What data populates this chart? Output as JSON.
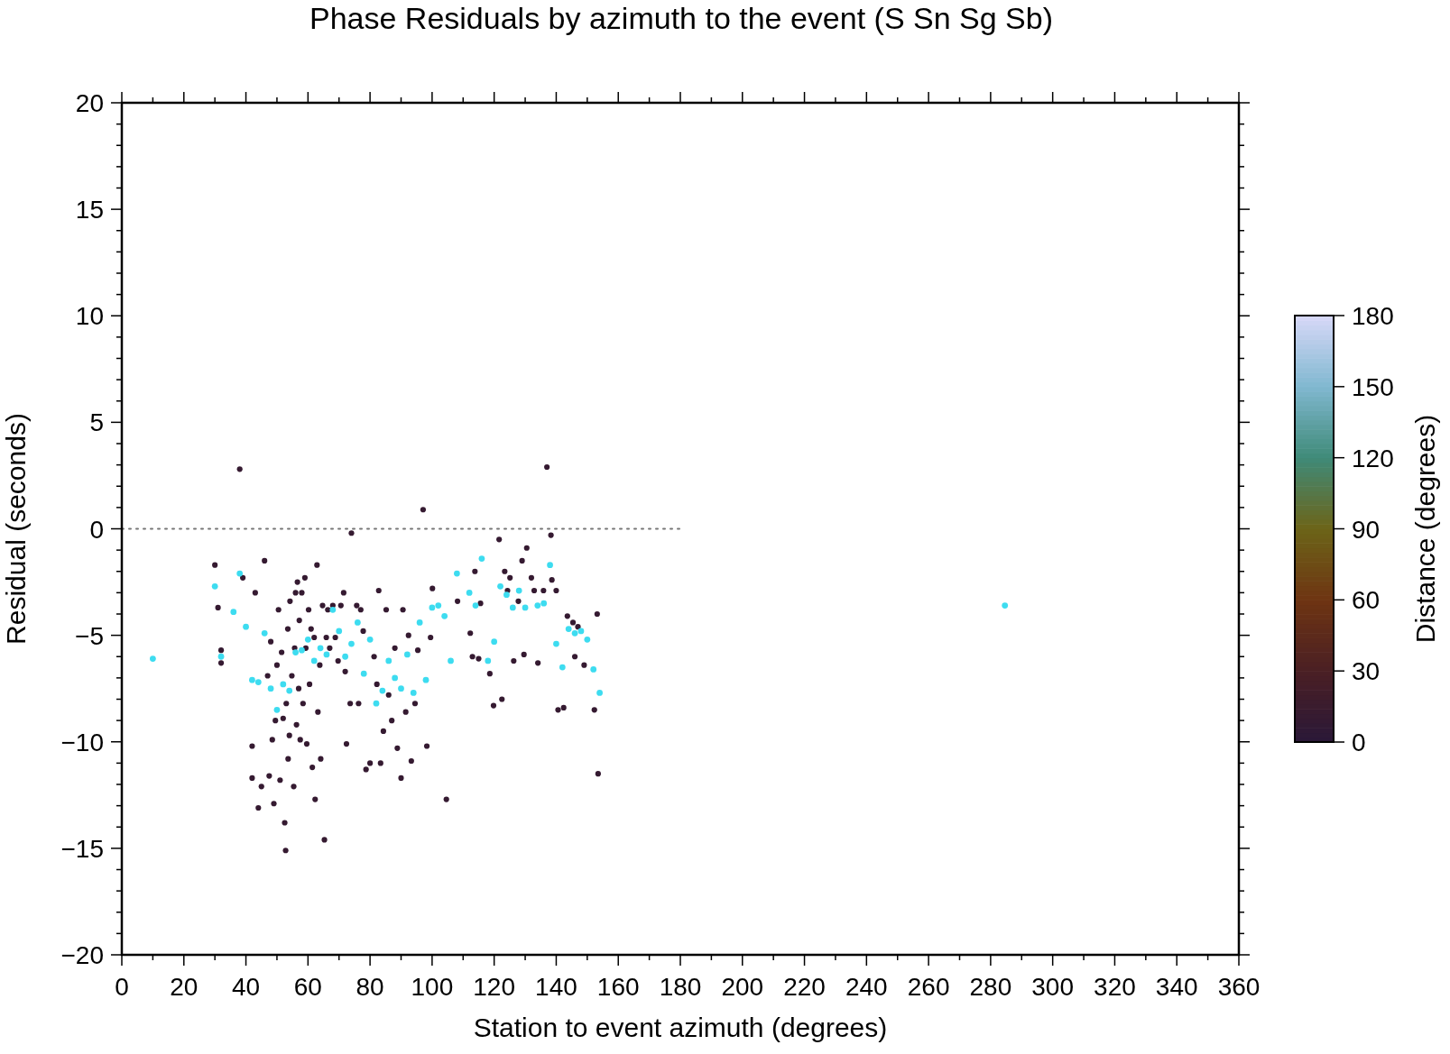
{
  "chart_data": {
    "type": "scatter",
    "title": "Phase Residuals by azimuth to the event (S Sn Sg Sb)",
    "xlabel": "Station to event azimuth (degrees)",
    "ylabel": "Residual (seconds)",
    "clabel": "Distance (degrees)",
    "xlim": [
      0,
      360
    ],
    "ylim": [
      -20,
      20
    ],
    "xticks": [
      0,
      {
        "value": 10,
        "label": null
      },
      20,
      {
        "value": 30,
        "label": null
      },
      40,
      {
        "value": 50,
        "label": null
      },
      60,
      {
        "value": 70,
        "label": null
      },
      80,
      {
        "value": 90,
        "label": null
      },
      100,
      {
        "value": 110,
        "label": null
      },
      120,
      {
        "value": 130,
        "label": null
      },
      140,
      {
        "value": 150,
        "label": null
      },
      160,
      {
        "value": 170,
        "label": null
      },
      180,
      {
        "value": 190,
        "label": null
      },
      200,
      {
        "value": 210,
        "label": null
      },
      220,
      {
        "value": 230,
        "label": null
      },
      240,
      {
        "value": 250,
        "label": null
      },
      260,
      {
        "value": 270,
        "label": null
      },
      280,
      {
        "value": 290,
        "label": null
      },
      300,
      {
        "value": 310,
        "label": null
      },
      320,
      {
        "value": 330,
        "label": null
      },
      340,
      {
        "value": 350,
        "label": null
      },
      360
    ],
    "yticks": [
      {
        "value": -20,
        "label": "−20"
      },
      {
        "value": -19,
        "label": null
      },
      {
        "value": -18,
        "label": null
      },
      {
        "value": -17,
        "label": null
      },
      {
        "value": -16,
        "label": null
      },
      {
        "value": -15,
        "label": "−15"
      },
      {
        "value": -14,
        "label": null
      },
      {
        "value": -13,
        "label": null
      },
      {
        "value": -12,
        "label": null
      },
      {
        "value": -11,
        "label": null
      },
      {
        "value": -10,
        "label": "−10"
      },
      {
        "value": -9,
        "label": null
      },
      {
        "value": -8,
        "label": null
      },
      {
        "value": -7,
        "label": null
      },
      {
        "value": -6,
        "label": null
      },
      {
        "value": -5,
        "label": "−5"
      },
      {
        "value": -4,
        "label": null
      },
      {
        "value": -3,
        "label": null
      },
      {
        "value": -2,
        "label": null
      },
      {
        "value": -1,
        "label": null
      },
      0,
      {
        "value": 1,
        "label": null
      },
      {
        "value": 2,
        "label": null
      },
      {
        "value": 3,
        "label": null
      },
      {
        "value": 4,
        "label": null
      },
      5,
      {
        "value": 6,
        "label": null
      },
      {
        "value": 7,
        "label": null
      },
      {
        "value": 8,
        "label": null
      },
      {
        "value": 9,
        "label": null
      },
      10,
      {
        "value": 11,
        "label": null
      },
      {
        "value": 12,
        "label": null
      },
      {
        "value": 13,
        "label": null
      },
      {
        "value": 14,
        "label": null
      },
      15,
      {
        "value": 16,
        "label": null
      },
      {
        "value": 17,
        "label": null
      },
      {
        "value": 18,
        "label": null
      },
      {
        "value": 19,
        "label": null
      },
      20
    ],
    "clim": [
      0,
      180
    ],
    "cticks": [
      0,
      30,
      60,
      90,
      120,
      150,
      180
    ],
    "grid": false,
    "series": [
      {
        "type": "line",
        "color": "#777777",
        "line_style": "dotted",
        "x": [
          0,
          180
        ],
        "values": [
          0,
          0
        ]
      },
      {
        "marker": "circle",
        "x": [
          30,
          31,
          32,
          32,
          38,
          39,
          43,
          42,
          42,
          44,
          45,
          46,
          47,
          47.5,
          48,
          48.5,
          49,
          49.5,
          50,
          50.5,
          51,
          51.5,
          52,
          52.5,
          52.8,
          53,
          53.5,
          53.6,
          54,
          54.2,
          54.8,
          55.4,
          55.7,
          56,
          56.3,
          56.6,
          57,
          57.2,
          57.5,
          58,
          58.4,
          59,
          59.3,
          59.6,
          60.2,
          60.5,
          61,
          61.4,
          62,
          62.3,
          62.9,
          63.2,
          63.8,
          64.1,
          64.7,
          65.3,
          65.9,
          66.4,
          67,
          68,
          68.8,
          69.7,
          70.6,
          71.5,
          72,
          72.4,
          73.6,
          74,
          75.7,
          76.3,
          77,
          77.8,
          78.7,
          80,
          81.3,
          82.2,
          82.8,
          83.4,
          84.3,
          85.2,
          86,
          87,
          88,
          88.8,
          90,
          90.6,
          91.5,
          92.4,
          93.3,
          94.5,
          95.4,
          97.1,
          98.3,
          99.5,
          100.1,
          104.6,
          108.2,
          112.3,
          113,
          113.8,
          115,
          115.6,
          118.6,
          119.8,
          121.6,
          122.5,
          123.4,
          124.3,
          125.1,
          126.3,
          127.8,
          129,
          129.6,
          130.5,
          132,
          132.9,
          134.1,
          135.9,
          137,
          138.3,
          138.6,
          140,
          140.6,
          142.4,
          143.6,
          145.4,
          146,
          147,
          149,
          152.3,
          153.2,
          153.5
        ],
        "values": [
          -1.7,
          -3.7,
          -5.7,
          -6.3,
          2.8,
          -2.3,
          -3.0,
          -10.2,
          -11.7,
          -13.1,
          -12.1,
          -1.5,
          -6.9,
          -11.6,
          -5.3,
          -9.9,
          -12.9,
          -9.0,
          -6.4,
          -3.8,
          -11.8,
          -5.8,
          -8.9,
          -13.8,
          -15.1,
          -8.2,
          -4.7,
          -10.8,
          -9.7,
          -3.4,
          -6.9,
          -12.1,
          -5.6,
          -3.0,
          -9.2,
          -2.5,
          -7.5,
          -4.3,
          -9.9,
          -3.0,
          -8.2,
          -2.3,
          -5.6,
          -10.1,
          -3.8,
          -7.3,
          -4.7,
          -11.2,
          -5.1,
          -12.7,
          -1.7,
          -8.6,
          -6.4,
          -10.8,
          -3.6,
          -14.6,
          -5.1,
          -3.8,
          -5.6,
          -3.6,
          -5.1,
          -6.2,
          -3.6,
          -3.0,
          -6.7,
          -10.1,
          -8.2,
          -0.2,
          -3.6,
          -8.2,
          -3.8,
          -4.8,
          -11.3,
          -11.0,
          -6.0,
          -7.3,
          -2.9,
          -11.0,
          -9.5,
          -3.8,
          -7.8,
          -9.0,
          -5.6,
          -10.3,
          -11.7,
          -3.8,
          -8.6,
          -5.0,
          -10.9,
          -8.2,
          -5.7,
          0.9,
          -10.2,
          -5.1,
          -2.8,
          -12.7,
          -3.4,
          -4.9,
          -6.0,
          -2.0,
          -6.1,
          -3.5,
          -6.8,
          -8.3,
          -0.5,
          -8.0,
          -2.0,
          -2.9,
          -2.3,
          -6.2,
          -3.4,
          -1.5,
          -5.9,
          -0.9,
          -2.3,
          -2.9,
          -6.3,
          -2.9,
          2.9,
          -0.3,
          -2.4,
          -2.9,
          -8.5,
          -8.4,
          -4.1,
          -4.4,
          -6.0,
          -4.6,
          -6.4,
          -8.5,
          -4.0,
          -11.5
        ],
        "cvalues": [
          10,
          10,
          10,
          10,
          10,
          10,
          10,
          10,
          10,
          10,
          10,
          10,
          10,
          10,
          10,
          10,
          10,
          10,
          10,
          10,
          10,
          10,
          10,
          10,
          10,
          10,
          10,
          10,
          10,
          10,
          10,
          10,
          10,
          10,
          10,
          10,
          10,
          10,
          10,
          10,
          10,
          10,
          10,
          10,
          10,
          10,
          10,
          10,
          10,
          10,
          10,
          10,
          10,
          10,
          10,
          10,
          10,
          10,
          10,
          10,
          10,
          10,
          10,
          10,
          10,
          10,
          10,
          10,
          10,
          10,
          10,
          10,
          10,
          10,
          10,
          10,
          10,
          10,
          10,
          10,
          10,
          10,
          10,
          10,
          10,
          10,
          10,
          10,
          10,
          10,
          10,
          10,
          10,
          10,
          10,
          10,
          10,
          10,
          10,
          10,
          10,
          10,
          10,
          10,
          10,
          10,
          10,
          10,
          10,
          10,
          10,
          10,
          10,
          10,
          10,
          10,
          10,
          10,
          10,
          10,
          10,
          10,
          10,
          10,
          10,
          10,
          10,
          10,
          10,
          10,
          10,
          10
        ]
      },
      {
        "marker": "circle",
        "color": "#3ddcf0",
        "x": [
          10,
          30,
          32,
          36,
          38,
          40,
          42,
          44,
          46,
          48,
          50,
          52,
          54,
          56,
          58,
          60,
          62,
          64,
          66,
          68,
          70,
          72,
          74,
          76,
          78,
          80,
          82,
          84,
          86,
          88,
          90,
          92,
          94,
          96,
          98,
          100,
          102,
          104,
          106,
          108,
          112,
          114,
          116,
          118,
          120,
          122,
          124,
          126,
          128,
          130,
          134,
          136,
          138,
          140,
          142,
          144,
          146,
          148,
          150,
          152,
          154,
          284.6
        ],
        "values": [
          -6.1,
          -2.7,
          -6.0,
          -3.9,
          -2.1,
          -4.6,
          -7.1,
          -7.2,
          -4.9,
          -7.5,
          -8.5,
          -7.3,
          -7.6,
          -5.8,
          -5.7,
          -5.2,
          -6.2,
          -5.6,
          -5.9,
          -3.8,
          -4.8,
          -6.0,
          -5.4,
          -4.4,
          -6.8,
          -5.2,
          -8.2,
          -7.6,
          -6.2,
          -7.0,
          -7.5,
          -5.9,
          -7.7,
          -4.4,
          -7.1,
          -3.7,
          -3.6,
          -4.1,
          -6.2,
          -2.1,
          -3.0,
          -3.6,
          -1.4,
          -6.2,
          -5.3,
          -2.7,
          -3.1,
          -3.7,
          -2.9,
          -3.7,
          -3.6,
          -3.5,
          -1.7,
          -5.4,
          -6.5,
          -4.7,
          -4.9,
          -4.8,
          -5.2,
          -6.6,
          -7.7,
          -3.6
        ]
      }
    ]
  }
}
